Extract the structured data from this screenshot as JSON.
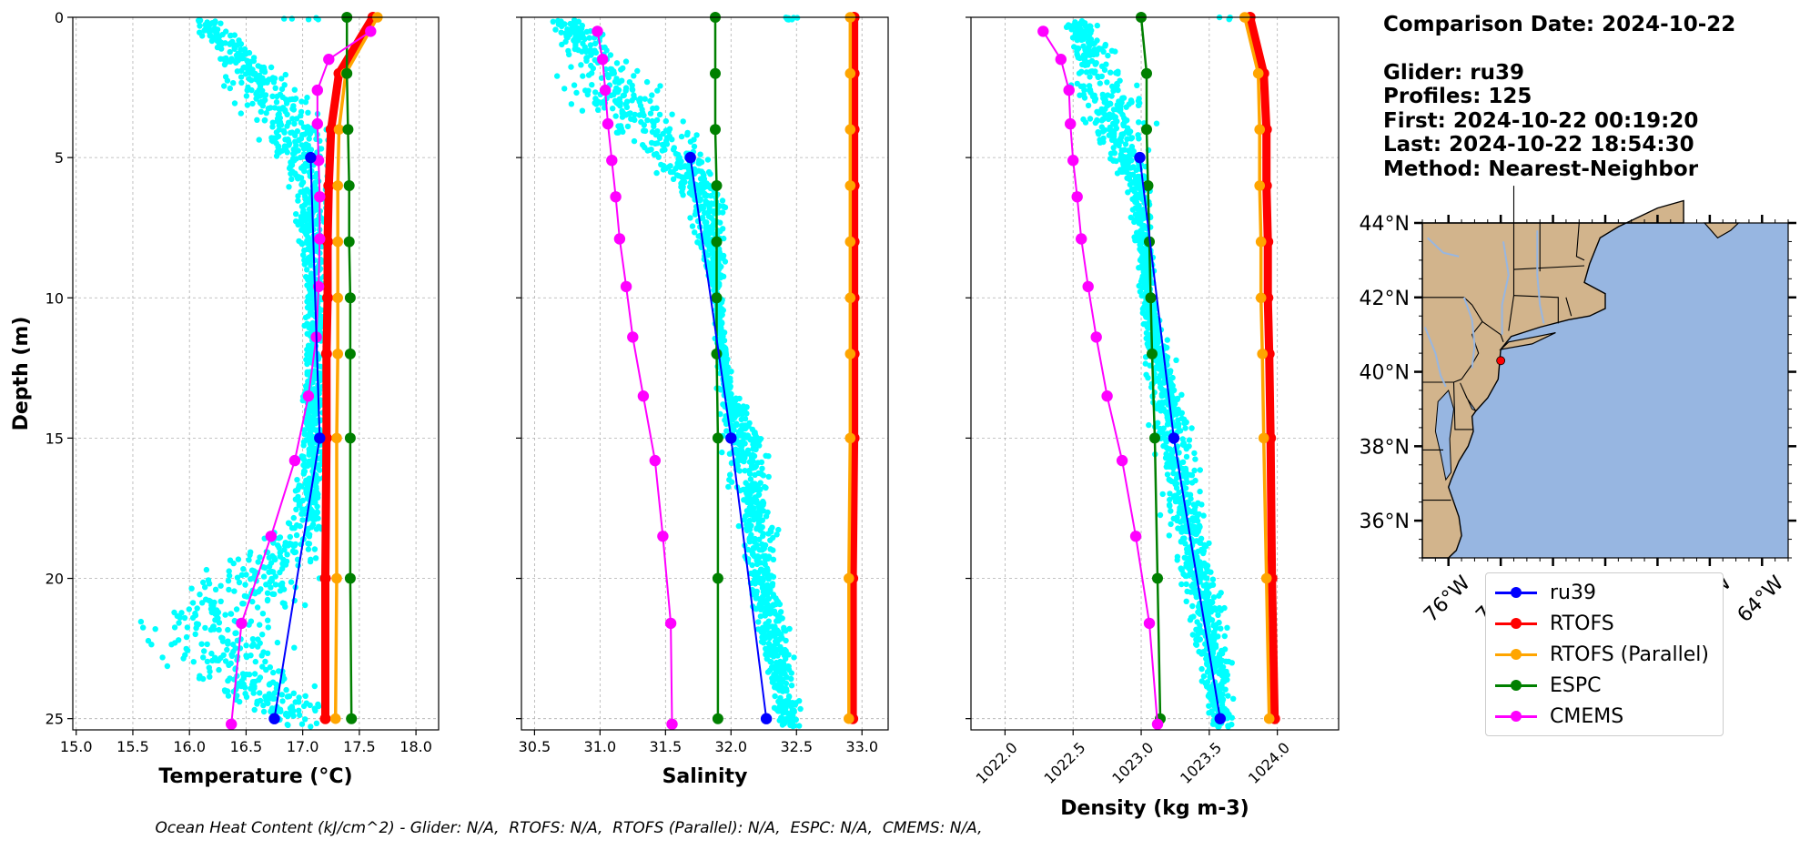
{
  "info": {
    "comparison_date": "Comparison Date: 2024-10-22",
    "glider": "Glider: ru39",
    "profiles": "Profiles: 125",
    "first": "First: 2024-10-22 00:19:20",
    "last": "Last: 2024-10-22 18:54:30",
    "method": "Method: Nearest-Neighbor"
  },
  "footer": "Ocean Heat Content (kJ/cm^2) - Glider: N/A,  RTOFS: N/A,  RTOFS (Parallel): N/A,  ESPC: N/A,  CMEMS: N/A,",
  "legend": [
    {
      "name": "ru39",
      "color": "#0000ff"
    },
    {
      "name": "RTOFS",
      "color": "#ff0000"
    },
    {
      "name": "RTOFS (Parallel)",
      "color": "#ffa500"
    },
    {
      "name": "ESPC",
      "color": "#008000"
    },
    {
      "name": "CMEMS",
      "color": "#ff00ff"
    }
  ],
  "map": {
    "lat_ticks": [
      "44°N",
      "42°N",
      "40°N",
      "38°N",
      "36°N"
    ],
    "lat_values": [
      44,
      42,
      40,
      38,
      36
    ],
    "lon_ticks": [
      "76°W",
      "74°W",
      "72°W",
      "70°W",
      "68°W",
      "66°W",
      "64°W"
    ],
    "lon_values": [
      -76,
      -74,
      -72,
      -70,
      -68,
      -66,
      -64
    ],
    "extent": {
      "lon": [
        -77,
        -63
      ],
      "lat": [
        35,
        44
      ]
    },
    "glider_position": {
      "lon": -74.0,
      "lat": 40.3
    },
    "land_color": "#d2b48c",
    "ocean_color": "#97b6e1"
  },
  "chart_data": [
    {
      "type": "line",
      "xlabel": "Temperature (°C)",
      "ylabel": "Depth (m)",
      "xlim": [
        14.97,
        18.2
      ],
      "ylim": [
        25.4,
        0
      ],
      "xticks": [
        "15.0",
        "15.5",
        "16.0",
        "16.5",
        "17.0",
        "17.5",
        "18.0"
      ],
      "xtick_values": [
        15.0,
        15.5,
        16.0,
        16.5,
        17.0,
        17.5,
        18.0
      ],
      "yticks": [
        "0",
        "5",
        "10",
        "15",
        "20",
        "25"
      ],
      "ytick_values": [
        0,
        5,
        10,
        15,
        20,
        25
      ],
      "grid": true,
      "glider_scatter_color": "#00ffff",
      "series": [
        {
          "name": "ru39",
          "color": "#0000ff",
          "depth": [
            5,
            15,
            25
          ],
          "values": [
            17.07,
            17.15,
            16.75
          ]
        },
        {
          "name": "RTOFS",
          "color": "#ff0000",
          "depth": [
            0,
            2,
            4,
            6,
            8,
            10,
            12,
            15,
            20,
            25
          ],
          "values": [
            17.62,
            17.32,
            17.25,
            17.23,
            17.22,
            17.22,
            17.21,
            17.21,
            17.2,
            17.2
          ]
        },
        {
          "name": "RTOFS (Parallel)",
          "color": "#ffa500",
          "depth": [
            0,
            2,
            4,
            6,
            8,
            10,
            12,
            15,
            20,
            25
          ],
          "values": [
            17.66,
            17.38,
            17.32,
            17.31,
            17.31,
            17.31,
            17.31,
            17.3,
            17.3,
            17.29
          ]
        },
        {
          "name": "ESPC",
          "color": "#008000",
          "depth": [
            0,
            2,
            4,
            6,
            8,
            10,
            12,
            15,
            20,
            25
          ],
          "values": [
            17.39,
            17.39,
            17.4,
            17.41,
            17.41,
            17.42,
            17.42,
            17.42,
            17.42,
            17.43
          ]
        },
        {
          "name": "CMEMS",
          "color": "#ff00ff",
          "depth": [
            0.5,
            1.5,
            2.6,
            3.8,
            5.1,
            6.4,
            7.9,
            9.6,
            11.4,
            13.5,
            15.8,
            18.5,
            21.6,
            25.2
          ],
          "values": [
            17.6,
            17.23,
            17.13,
            17.13,
            17.14,
            17.15,
            17.15,
            17.14,
            17.12,
            17.05,
            16.93,
            16.72,
            16.46,
            16.37
          ]
        }
      ]
    },
    {
      "type": "line",
      "xlabel": "Salinity",
      "ylabel": "",
      "xlim": [
        30.4,
        33.2
      ],
      "ylim": [
        25.4,
        0
      ],
      "xticks": [
        "30.5",
        "31.0",
        "31.5",
        "32.0",
        "32.5",
        "33.0"
      ],
      "xtick_values": [
        30.5,
        31.0,
        31.5,
        32.0,
        32.5,
        33.0
      ],
      "yticks": [],
      "ytick_values": [
        0,
        5,
        10,
        15,
        20,
        25
      ],
      "grid": true,
      "glider_scatter_color": "#00ffff",
      "series": [
        {
          "name": "ru39",
          "color": "#0000ff",
          "depth": [
            5,
            15,
            25
          ],
          "values": [
            31.69,
            32.0,
            32.27
          ]
        },
        {
          "name": "RTOFS",
          "color": "#ff0000",
          "depth": [
            0,
            2,
            4,
            6,
            8,
            10,
            12,
            15,
            20,
            25
          ],
          "values": [
            32.94,
            32.94,
            32.94,
            32.94,
            32.94,
            32.94,
            32.94,
            32.94,
            32.93,
            32.93
          ]
        },
        {
          "name": "RTOFS (Parallel)",
          "color": "#ffa500",
          "depth": [
            0,
            2,
            4,
            6,
            8,
            10,
            12,
            15,
            20,
            25
          ],
          "values": [
            32.91,
            32.91,
            32.91,
            32.91,
            32.91,
            32.91,
            32.91,
            32.91,
            32.9,
            32.9
          ]
        },
        {
          "name": "ESPC",
          "color": "#008000",
          "depth": [
            0,
            2,
            4,
            6,
            8,
            10,
            12,
            15,
            20,
            25
          ],
          "values": [
            31.88,
            31.88,
            31.88,
            31.89,
            31.89,
            31.89,
            31.89,
            31.9,
            31.9,
            31.9
          ]
        },
        {
          "name": "CMEMS",
          "color": "#ff00ff",
          "depth": [
            0.5,
            1.5,
            2.6,
            3.8,
            5.1,
            6.4,
            7.9,
            9.6,
            11.4,
            13.5,
            15.8,
            18.5,
            21.6,
            25.2
          ],
          "values": [
            30.98,
            31.02,
            31.04,
            31.06,
            31.09,
            31.12,
            31.15,
            31.2,
            31.25,
            31.33,
            31.42,
            31.48,
            31.54,
            31.55
          ]
        }
      ]
    },
    {
      "type": "line",
      "xlabel": "Density (kg m-3)",
      "ylabel": "",
      "xlim": [
        1021.75,
        1024.45
      ],
      "ylim": [
        25.4,
        0
      ],
      "xticks": [
        "1022.0",
        "1022.5",
        "1023.0",
        "1023.5",
        "1024.0"
      ],
      "xtick_values": [
        1022.0,
        1022.5,
        1023.0,
        1023.5,
        1024.0
      ],
      "yticks": [],
      "ytick_values": [
        0,
        5,
        10,
        15,
        20,
        25
      ],
      "grid": true,
      "glider_scatter_color": "#00ffff",
      "series": [
        {
          "name": "ru39",
          "color": "#0000ff",
          "depth": [
            5,
            15,
            25
          ],
          "values": [
            1022.99,
            1023.24,
            1023.58
          ]
        },
        {
          "name": "RTOFS",
          "color": "#ff0000",
          "depth": [
            0,
            2,
            4,
            6,
            8,
            10,
            12,
            15,
            20,
            25
          ],
          "values": [
            1023.8,
            1023.9,
            1023.92,
            1023.92,
            1023.93,
            1023.93,
            1023.94,
            1023.95,
            1023.96,
            1023.98
          ]
        },
        {
          "name": "RTOFS (Parallel)",
          "color": "#ffa500",
          "depth": [
            0,
            2,
            4,
            6,
            8,
            10,
            12,
            15,
            20,
            25
          ],
          "values": [
            1023.76,
            1023.86,
            1023.87,
            1023.87,
            1023.88,
            1023.88,
            1023.89,
            1023.9,
            1023.92,
            1023.94
          ]
        },
        {
          "name": "ESPC",
          "color": "#008000",
          "depth": [
            0,
            2,
            4,
            6,
            8,
            10,
            12,
            15,
            20,
            25
          ],
          "values": [
            1023.0,
            1023.04,
            1023.04,
            1023.05,
            1023.06,
            1023.07,
            1023.08,
            1023.1,
            1023.12,
            1023.14
          ]
        },
        {
          "name": "CMEMS",
          "color": "#ff00ff",
          "depth": [
            0.5,
            1.5,
            2.6,
            3.8,
            5.1,
            6.4,
            7.9,
            9.6,
            11.4,
            13.5,
            15.8,
            18.5,
            21.6,
            25.2
          ],
          "values": [
            1022.28,
            1022.41,
            1022.47,
            1022.48,
            1022.5,
            1022.53,
            1022.56,
            1022.61,
            1022.67,
            1022.75,
            1022.86,
            1022.96,
            1023.06,
            1023.12
          ]
        }
      ]
    }
  ]
}
